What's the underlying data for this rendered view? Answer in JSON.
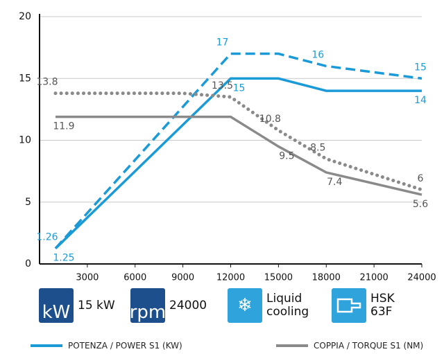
{
  "chart_data": {
    "type": "line",
    "xlim": [
      0,
      24000
    ],
    "xticks": [
      3000,
      6000,
      9000,
      12000,
      15000,
      18000,
      21000,
      24000
    ],
    "ylim": [
      0,
      20
    ],
    "yticks": [
      0,
      5,
      10,
      15,
      20
    ],
    "grid": true,
    "series": [
      {
        "name": "POTENZA / POWER S1 (KW)",
        "color": "#1a9bd7",
        "style": "solid",
        "x": [
          1000,
          12000,
          15000,
          18000,
          24000
        ],
        "values": [
          1.25,
          15,
          15,
          14,
          14
        ],
        "value_labels": [
          "1.25",
          "15",
          null,
          null,
          "14"
        ]
      },
      {
        "color": "#1a9bd7",
        "style": "dashed",
        "x": [
          1000,
          12000,
          15000,
          18000,
          24000
        ],
        "values": [
          1.26,
          17,
          17,
          16,
          15
        ],
        "value_labels": [
          "1.26",
          "17",
          null,
          "16",
          "15"
        ]
      },
      {
        "name": "COPPIA / TORQUE S1 (NM)",
        "color": "#8a8a8a",
        "style": "solid",
        "x": [
          1000,
          12000,
          15000,
          18000,
          24000
        ],
        "values": [
          11.9,
          11.9,
          9.5,
          7.4,
          5.6
        ],
        "value_labels": [
          "11.9",
          null,
          "9.5",
          "7.4",
          "5.6"
        ]
      },
      {
        "color": "#8a8a8a",
        "style": "dotted",
        "x": [
          1000,
          9000,
          12000,
          15000,
          18000,
          24000
        ],
        "values": [
          13.8,
          13.8,
          13.5,
          10.8,
          8.5,
          6
        ],
        "value_labels": [
          "13.8",
          null,
          "13.5",
          "10.8",
          "8.5",
          "6"
        ]
      }
    ]
  },
  "features": [
    {
      "icon": "kW",
      "label": "15 kW"
    },
    {
      "icon": "rpm",
      "label": "24000"
    },
    {
      "icon": "❄",
      "label": "Liquid cooling"
    },
    {
      "icon": "",
      "label": "HSK 63F"
    }
  ]
}
